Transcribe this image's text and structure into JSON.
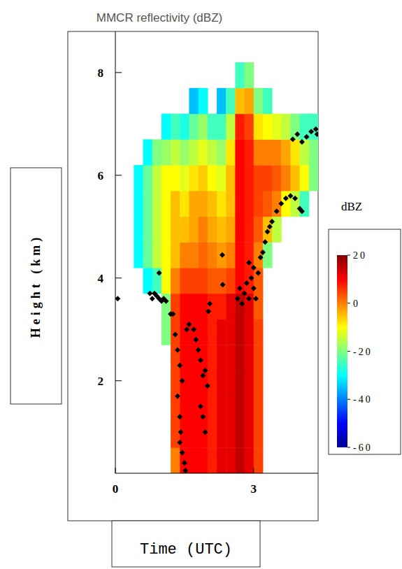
{
  "chart_data": {
    "type": "heatmap",
    "title": "MMCR reflectivity (dBZ)",
    "x_label": "Time (UTC)",
    "y_label": "Height (km)",
    "xlim": [
      0,
      4.4
    ],
    "ylim": [
      0.2,
      8.8
    ],
    "xticks": [
      0,
      3
    ],
    "yticks": [
      2,
      4,
      6,
      8
    ],
    "x_edges": [
      0.4,
      0.6,
      0.8,
      1.0,
      1.2,
      1.4,
      1.6,
      1.8,
      2.0,
      2.2,
      2.4,
      2.6,
      2.8,
      3.0,
      3.2,
      3.4,
      3.6,
      3.8,
      4.0,
      4.2,
      4.4
    ],
    "y_edges": [
      0.2,
      0.7,
      1.2,
      1.7,
      2.2,
      2.7,
      3.2,
      3.7,
      4.2,
      4.7,
      5.2,
      5.7,
      6.2,
      6.7,
      7.2,
      7.7,
      8.2
    ],
    "cells": [
      [
        null,
        null,
        null,
        null,
        0,
        10,
        10,
        10,
        8,
        12,
        12,
        15,
        12,
        5,
        null,
        null,
        null,
        null,
        null,
        null
      ],
      [
        null,
        null,
        null,
        null,
        5,
        10,
        10,
        10,
        8,
        12,
        12,
        15,
        12,
        5,
        null,
        null,
        null,
        null,
        null,
        null
      ],
      [
        null,
        null,
        null,
        null,
        5,
        10,
        10,
        10,
        8,
        12,
        12,
        15,
        12,
        5,
        null,
        null,
        null,
        null,
        null,
        null
      ],
      [
        null,
        null,
        null,
        null,
        5,
        10,
        10,
        10,
        8,
        12,
        12,
        15,
        12,
        5,
        null,
        null,
        null,
        null,
        null,
        null
      ],
      [
        null,
        null,
        null,
        null,
        5,
        10,
        10,
        10,
        8,
        12,
        12,
        15,
        12,
        5,
        null,
        null,
        null,
        null,
        null,
        null
      ],
      [
        null,
        null,
        null,
        -20,
        5,
        10,
        10,
        10,
        8,
        12,
        12,
        15,
        12,
        5,
        null,
        null,
        null,
        null,
        null,
        null
      ],
      [
        null,
        null,
        null,
        -20,
        5,
        10,
        10,
        10,
        8,
        8,
        12,
        15,
        12,
        3,
        null,
        null,
        null,
        null,
        null,
        null
      ],
      [
        null,
        -30,
        -25,
        -10,
        0,
        5,
        5,
        5,
        3,
        3,
        5,
        10,
        8,
        3,
        null,
        null,
        null,
        null,
        null,
        null
      ],
      [
        -30,
        -22,
        -15,
        -10,
        -5,
        0,
        0,
        2,
        0,
        -2,
        0,
        10,
        8,
        0,
        -20,
        null,
        null,
        null,
        null,
        null
      ],
      [
        -30,
        -22,
        -15,
        -10,
        -5,
        -5,
        -3,
        0,
        -3,
        -5,
        -3,
        10,
        8,
        3,
        -5,
        -15,
        null,
        null,
        null,
        null
      ],
      [
        -30,
        -22,
        -15,
        -10,
        -5,
        -8,
        -3,
        -3,
        -5,
        -8,
        -5,
        10,
        8,
        5,
        3,
        0,
        -10,
        -15,
        -25,
        null
      ],
      [
        -30,
        -22,
        -15,
        -10,
        -10,
        -12,
        -8,
        -6,
        -10,
        -12,
        -5,
        10,
        8,
        5,
        5,
        3,
        0,
        -5,
        -10,
        -20
      ],
      [
        null,
        -30,
        -20,
        -18,
        -15,
        -18,
        -15,
        -12,
        -15,
        -18,
        -8,
        10,
        8,
        0,
        0,
        0,
        -3,
        -8,
        -15,
        -20
      ],
      [
        null,
        null,
        null,
        -30,
        -25,
        -28,
        -22,
        -18,
        -25,
        -25,
        -15,
        8,
        5,
        -8,
        -10,
        -12,
        -15,
        -20,
        -25,
        -25
      ],
      [
        null,
        null,
        null,
        null,
        null,
        null,
        -35,
        -30,
        null,
        -35,
        -25,
        -5,
        -3,
        -20,
        -25,
        null,
        null,
        null,
        null,
        null
      ],
      [
        null,
        null,
        null,
        null,
        null,
        null,
        null,
        null,
        null,
        null,
        null,
        -25,
        -20,
        null,
        null,
        null,
        null,
        null,
        null,
        null
      ]
    ],
    "colorbar": {
      "label": "dBZ",
      "lim": [
        -60,
        20
      ],
      "ticks": [
        20,
        0,
        -20,
        -40,
        -60
      ]
    },
    "series": [
      {
        "type": "scatter",
        "color": "#000000",
        "marker": "diamond",
        "x": [
          0.05,
          0.75,
          0.8,
          0.85,
          0.9,
          0.95,
          1.0,
          1.05,
          1.1,
          0.95,
          1.2,
          1.25,
          1.3,
          1.35,
          1.4,
          1.45,
          1.35,
          1.4,
          1.42,
          1.4,
          1.45,
          1.5,
          1.52,
          1.55,
          1.6,
          1.7,
          1.75,
          1.8,
          1.85,
          1.9,
          1.95,
          2.0,
          1.85,
          1.9,
          1.95,
          2.02,
          2.05,
          2.32,
          2.33,
          2.65,
          2.7,
          2.75,
          2.8,
          2.85,
          2.9,
          2.95,
          3.0,
          3.05,
          3.0,
          2.9,
          3.1,
          3.15,
          3.2,
          3.25,
          3.3,
          3.35,
          3.4,
          3.5,
          3.6,
          3.7,
          3.8,
          3.9,
          4.0,
          4.05,
          3.85,
          3.95,
          4.05,
          4.15,
          4.25,
          4.35,
          4.38
        ],
        "values": [
          3.6,
          3.7,
          3.6,
          3.7,
          3.65,
          3.6,
          3.55,
          3.6,
          3.55,
          4.1,
          3.3,
          3.3,
          2.9,
          2.6,
          2.3,
          2.0,
          1.7,
          1.3,
          1.0,
          0.8,
          0.6,
          0.4,
          0.25,
          3.0,
          3.1,
          3.0,
          2.8,
          2.6,
          2.4,
          2.1,
          2.2,
          1.9,
          1.5,
          1.3,
          1.0,
          3.35,
          3.5,
          4.45,
          3.87,
          3.6,
          3.8,
          3.5,
          3.7,
          3.9,
          3.6,
          4.0,
          3.8,
          3.6,
          4.2,
          4.3,
          4.1,
          4.4,
          4.5,
          4.7,
          4.9,
          5.0,
          5.1,
          5.3,
          5.45,
          5.55,
          5.6,
          5.55,
          5.35,
          5.3,
          6.7,
          6.8,
          6.65,
          6.75,
          6.85,
          6.9,
          6.8
        ]
      }
    ]
  }
}
